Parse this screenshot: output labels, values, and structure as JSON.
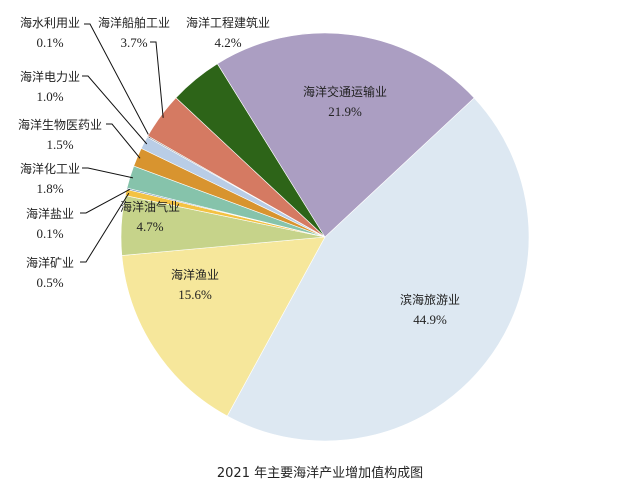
{
  "chart_data": {
    "type": "pie",
    "title": "2021 年主要海洋产业增加值构成图",
    "unit": "%",
    "slices": [
      {
        "label": "滨海旅游业",
        "value": 44.9,
        "display": "44.9%",
        "color": "#dde8f2"
      },
      {
        "label": "海洋渔业",
        "value": 15.6,
        "display": "15.6%",
        "color": "#f6e79b"
      },
      {
        "label": "海洋油气业",
        "value": 4.7,
        "display": "4.7%",
        "color": "#c6d38a"
      },
      {
        "label": "海洋矿业",
        "value": 0.5,
        "display": "0.5%",
        "color": "#f3c243"
      },
      {
        "label": "海洋盐业",
        "value": 0.1,
        "display": "0.1%",
        "color": "#5b7fa8"
      },
      {
        "label": "海洋化工业",
        "value": 1.8,
        "display": "1.8%",
        "color": "#86c3ab"
      },
      {
        "label": "海洋生物医药业",
        "value": 1.5,
        "display": "1.5%",
        "color": "#d8942f"
      },
      {
        "label": "海洋电力业",
        "value": 1.0,
        "display": "1.0%",
        "color": "#b9cde6"
      },
      {
        "label": "海水利用业",
        "value": 0.1,
        "display": "0.1%",
        "color": "#8e8e8e"
      },
      {
        "label": "海洋船舶工业",
        "value": 3.7,
        "display": "3.7%",
        "color": "#d57a62"
      },
      {
        "label": "海洋工程建筑业",
        "value": 4.2,
        "display": "4.2%",
        "color": "#2d6418"
      },
      {
        "label": "海洋交通运输业",
        "value": 21.9,
        "display": "21.9%",
        "color": "#ab9ec2"
      }
    ],
    "legend": "none",
    "label_style": "category and percent labels, leader lines for small slices"
  }
}
